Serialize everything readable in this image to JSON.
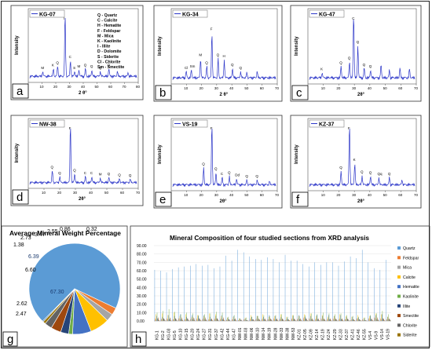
{
  "chart_data": [
    {
      "panel": "a",
      "type": "line",
      "legend": "KG-07",
      "xlabel": "2 θ°",
      "ylabel": "Intensity",
      "xlim": [
        0,
        80
      ],
      "xticks": [
        "0",
        "10",
        "20",
        "30",
        "40",
        "50",
        "60",
        "70",
        "80"
      ],
      "peak_labels": [
        "M",
        "K",
        "Q",
        "I",
        "C",
        "S",
        "M",
        "Q",
        "Q",
        "Q",
        "Q"
      ],
      "key": [
        "Q - Quartz",
        "C - Calcite",
        "H - Hematite",
        "F - Feldspar",
        "M - Mica",
        "K - Kaolinite",
        "I - Illite",
        "D - Dolomite",
        "S - Siderite",
        "Cl - Chlorite",
        "Sm - Smectite"
      ]
    },
    {
      "panel": "b",
      "type": "line",
      "legend": "KG-34",
      "xlabel": "2 θ°",
      "ylabel": "Intensity",
      "xlim": [
        0,
        70
      ],
      "xticks": [
        "0",
        "10",
        "20",
        "30",
        "40",
        "50",
        "60",
        "70"
      ],
      "peak_labels": [
        "Cl",
        "Sm",
        "M",
        "Q",
        "F",
        "Q",
        "H",
        "Q",
        "Q"
      ]
    },
    {
      "panel": "c",
      "type": "line",
      "legend": "KG-47",
      "xlabel": "2θ°",
      "ylabel": "Intensity",
      "xlim": [
        0,
        70
      ],
      "xticks": [
        "0",
        "10",
        "20",
        "30",
        "40",
        "50",
        "60",
        "70"
      ],
      "peak_labels": [
        "K",
        "Q",
        "Q",
        "C",
        "Q",
        "Q",
        "Q"
      ]
    },
    {
      "panel": "d",
      "type": "line",
      "legend": "NW-38",
      "xlabel": "2θ°",
      "ylabel": "Intensity",
      "xlim": [
        0,
        70
      ],
      "xticks": [
        "0",
        "10",
        "20",
        "30",
        "40",
        "50",
        "60",
        "70"
      ],
      "peak_labels": [
        "Q",
        "Q",
        "F",
        "Q",
        "C",
        "C",
        "M",
        "Q",
        "Q",
        "Q"
      ]
    },
    {
      "panel": "e",
      "type": "line",
      "legend": "VS-19",
      "xlabel": "2θ°",
      "ylabel": "Intensity",
      "xlim": [
        0,
        70
      ],
      "xticks": [
        "0",
        "10",
        "20",
        "30",
        "40",
        "50",
        "60",
        "70"
      ],
      "peak_labels": [
        "Q",
        "F",
        "Q",
        "C",
        "Q",
        "Dd",
        "Q",
        "Q"
      ]
    },
    {
      "panel": "f",
      "type": "line",
      "legend": "KZ-37",
      "xlabel": "2θ°",
      "ylabel": "Intensity",
      "xlim": [
        0,
        70
      ],
      "xticks": [
        "0",
        "10",
        "20",
        "30",
        "40",
        "50",
        "60",
        "70"
      ],
      "peak_labels": [
        "Q",
        "F",
        "K",
        "Q",
        "Q",
        "Qq",
        "Q"
      ]
    },
    {
      "panel": "g",
      "type": "pie",
      "title": "Average Mineral Weight Percentage",
      "values": [
        67.3,
        2.47,
        2.62,
        6.6,
        6.39,
        1.38,
        2.73,
        3.47,
        2.55,
        0.86,
        0.32
      ],
      "colors": [
        "#5b9bd5",
        "#ed7d31",
        "#a5a5a5",
        "#ffc000",
        "#4472c4",
        "#70ad47",
        "#264478",
        "#9e480e",
        "#636363",
        "#997300",
        "#255e91"
      ]
    },
    {
      "panel": "h",
      "type": "bar",
      "title": "Mineral Composition of four studied sections from XRD analysis",
      "ylim": [
        0,
        90
      ],
      "yticks": [
        "0.00",
        "10.00",
        "20.00",
        "30.00",
        "40.00",
        "50.00",
        "60.00",
        "70.00",
        "80.00",
        "90.00"
      ],
      "categories": [
        "KG-1",
        "KG-2",
        "KG-03",
        "KG-5",
        "KG-10",
        "KG-15",
        "KG-20",
        "KG-24",
        "KG-27",
        "KG-31",
        "KG-37",
        "KG-42",
        "KG-44",
        "KG-47",
        "NW-01",
        "NW-03",
        "NW-06",
        "NW-10",
        "NW-14",
        "NW-19",
        "NW-28",
        "NW-33",
        "NW-38",
        "NW-53",
        "KZ-01",
        "KZ-05",
        "KZ-09",
        "KZ-14",
        "KZ-19",
        "KZ-24",
        "KZ-29",
        "KZ-33",
        "KZ-37",
        "KZ-41",
        "KZ-46",
        "KZ-55",
        "VS-4",
        "VS-9",
        "VS-14",
        "VS-19"
      ],
      "series": [
        {
          "name": "Quartz",
          "color": "#5b9bd5",
          "values": [
            61,
            60,
            58,
            62,
            64,
            65,
            66,
            68,
            66,
            67,
            63,
            65,
            78,
            72,
            85,
            82,
            77,
            74,
            73,
            76,
            74,
            70,
            79,
            72,
            72,
            68,
            65,
            70,
            67,
            70,
            70,
            66,
            71,
            77,
            75,
            85,
            70,
            63,
            61,
            73
          ]
        },
        {
          "name": "Feldspar",
          "color": "#ed7d31",
          "values": [
            3,
            2,
            3,
            2,
            3,
            2,
            2,
            3,
            2,
            2,
            3,
            2,
            1,
            2,
            1,
            2,
            3,
            2,
            2,
            2,
            3,
            2,
            1,
            3,
            2,
            4,
            3,
            2,
            3,
            2,
            3,
            2,
            2,
            1,
            3,
            2,
            3,
            4,
            3,
            2
          ]
        },
        {
          "name": "Mica",
          "color": "#a5a5a5",
          "values": [
            2,
            3,
            2,
            2,
            3,
            2,
            3,
            2,
            3,
            2,
            2,
            3,
            2,
            2,
            1,
            2,
            2,
            3,
            3,
            2,
            2,
            3,
            2,
            2,
            3,
            2,
            2,
            3,
            2,
            3,
            2,
            3,
            2,
            2,
            3,
            1,
            3,
            3,
            2,
            2
          ]
        },
        {
          "name": "Calcite",
          "color": "#ffc000",
          "values": [
            8,
            9,
            7,
            10,
            6,
            8,
            5,
            7,
            6,
            9,
            8,
            6,
            4,
            5,
            3,
            4,
            7,
            6,
            8,
            5,
            6,
            8,
            5,
            7,
            6,
            8,
            9,
            6,
            7,
            5,
            6,
            8,
            6,
            5,
            7,
            4,
            6,
            9,
            8,
            5
          ]
        },
        {
          "name": "Hematite",
          "color": "#4472c4",
          "values": [
            6,
            5,
            7,
            6,
            8,
            5,
            7,
            6,
            7,
            5,
            6,
            7,
            4,
            6,
            3,
            3,
            5,
            6,
            5,
            7,
            6,
            5,
            4,
            6,
            7,
            5,
            6,
            7,
            6,
            7,
            6,
            7,
            5,
            5,
            4,
            3,
            6,
            7,
            8,
            5
          ]
        },
        {
          "name": "Kaolinite",
          "color": "#70ad47",
          "values": [
            10,
            12,
            14,
            11,
            8,
            10,
            9,
            7,
            8,
            9,
            11,
            10,
            5,
            7,
            3,
            4,
            5,
            6,
            7,
            6,
            7,
            8,
            5,
            7,
            6,
            7,
            9,
            8,
            10,
            9,
            8,
            9,
            7,
            6,
            5,
            4,
            7,
            9,
            12,
            8
          ]
        },
        {
          "name": "Illite",
          "color": "#264478",
          "values": [
            3,
            3,
            2,
            3,
            2,
            3,
            2,
            3,
            2,
            2,
            3,
            2,
            2,
            2,
            1,
            1,
            2,
            2,
            2,
            2,
            2,
            2,
            2,
            2,
            2,
            3,
            2,
            2,
            2,
            2,
            2,
            2,
            2,
            2,
            2,
            1,
            2,
            2,
            3,
            2
          ]
        },
        {
          "name": "Smectite",
          "color": "#9e480e",
          "values": [
            4,
            3,
            4,
            3,
            4,
            3,
            4,
            3,
            4,
            3,
            3,
            4,
            2,
            3,
            2,
            1,
            2,
            3,
            3,
            3,
            3,
            3,
            2,
            3,
            3,
            3,
            3,
            3,
            3,
            3,
            3,
            3,
            3,
            2,
            2,
            1,
            3,
            4,
            3,
            3
          ]
        },
        {
          "name": "Chlorite",
          "color": "#636363",
          "values": [
            2,
            2,
            3,
            2,
            2,
            2,
            3,
            2,
            2,
            2,
            2,
            2,
            1,
            2,
            1,
            1,
            2,
            2,
            2,
            2,
            2,
            2,
            1,
            2,
            2,
            2,
            2,
            2,
            2,
            2,
            2,
            2,
            2,
            1,
            1,
            1,
            2,
            2,
            2,
            2
          ]
        },
        {
          "name": "Siderite",
          "color": "#997300",
          "values": [
            1,
            1,
            1,
            1,
            1,
            1,
            1,
            1,
            1,
            1,
            1,
            1,
            0,
            1,
            0,
            0,
            1,
            1,
            1,
            1,
            1,
            1,
            1,
            1,
            1,
            1,
            1,
            1,
            1,
            1,
            1,
            1,
            1,
            1,
            1,
            0,
            1,
            1,
            1,
            1
          ]
        }
      ]
    }
  ]
}
